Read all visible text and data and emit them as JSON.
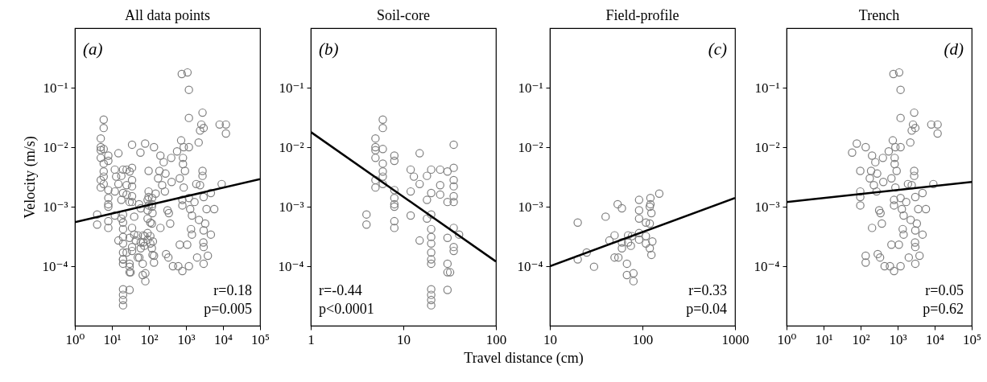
{
  "chart_data": [
    {
      "type": "scatter",
      "title": "All data points",
      "ylabel": "Velocity (m/s)",
      "log": "xy",
      "xlim": [
        1,
        100000
      ],
      "xticks": [
        {
          "value": 1,
          "label": "10⁰"
        },
        {
          "value": 10,
          "label": "10¹"
        },
        {
          "value": 100,
          "label": "10²"
        },
        {
          "value": 1000,
          "label": "10³"
        },
        {
          "value": 10000,
          "label": "10⁴"
        },
        {
          "value": 100000,
          "label": "10⁵"
        }
      ],
      "ylim": [
        1e-05,
        1
      ],
      "yticks": [
        {
          "value": 0.0001,
          "label": "10⁻⁴"
        },
        {
          "value": 0.001,
          "label": "10⁻³"
        },
        {
          "value": 0.01,
          "label": "10⁻²"
        },
        {
          "value": 0.1,
          "label": "10⁻¹"
        }
      ],
      "annotations": [
        "(a)",
        "r=0.18",
        "p=0.005"
      ],
      "series": [
        {
          "type": "scatter",
          "marker": "circle",
          "color": "#808080",
          "x": [
            4,
            4,
            5,
            5,
            5,
            5,
            5,
            5,
            6,
            6,
            6,
            6,
            6,
            6,
            6,
            8,
            8,
            8,
            8,
            8,
            8,
            8,
            8,
            12,
            12,
            12,
            13,
            15,
            15,
            15,
            18,
            18,
            18,
            20,
            20,
            20,
            20,
            20,
            20,
            20,
            20,
            20,
            20,
            20,
            20,
            20,
            25,
            25,
            25,
            30,
            30,
            30,
            30,
            30,
            30,
            32,
            35,
            35,
            35,
            35,
            35,
            35,
            35,
            35,
            35,
            40,
            20,
            20,
            25,
            30,
            40,
            44,
            50,
            50,
            54,
            60,
            55,
            60,
            60,
            68,
            70,
            70,
            68,
            80,
            80,
            75,
            77,
            92,
            92,
            92,
            92,
            92,
            109,
            109,
            109,
            122,
            122,
            120,
            125,
            120,
            120,
            125,
            128,
            152,
            59,
            79,
            98,
            98,
            98,
            98,
            137,
            137,
            137,
            204,
            177,
            192,
            228,
            250,
            270,
            290,
            335,
            204,
            317,
            345,
            375,
            280,
            400,
            410,
            445,
            575,
            620,
            680,
            680,
            740,
            770,
            830,
            830,
            870,
            800,
            800,
            800,
            870,
            940,
            1100,
            1200,
            1200,
            1200,
            1080,
            1200,
            1200,
            1300,
            1370,
            1450,
            1450,
            1700,
            1900,
            2000,
            2200,
            2250,
            2400,
            2400,
            2600,
            2800,
            2800,
            2800,
            2950,
            3000,
            3000,
            3000,
            3000,
            3000,
            3300,
            3600,
            3900,
            4700,
            5800,
            4700,
            8100,
            9200,
            12000,
            12000
          ],
          "values": [
            0.00074,
            0.0005,
            0.014,
            0.01,
            0.0089,
            0.0066,
            0.0028,
            0.0021,
            0.029,
            0.021,
            0.0093,
            0.0053,
            0.0039,
            0.0032,
            0.0024,
            0.0072,
            0.0059,
            0.0019,
            0.0014,
            0.0011,
            0.001,
            0.00057,
            0.00044,
            0.0042,
            0.0018,
            0.00071,
            0.0032,
            0.0079,
            0.0024,
            0.00027,
            0.0033,
            0.0013,
            0.00063,
            0.0042,
            0.0017,
            0.00074,
            0.00042,
            0.00031,
            0.00024,
            0.00017,
            0.00013,
            0.00011,
            4.1e-05,
            3.3e-05,
            2.7e-05,
            2.2e-05,
            0.0042,
            0.0023,
            0.0016,
            0.0039,
            0.0012,
            0.0003,
            0.00011,
            7.9e-05,
            4e-05,
            7.9e-05,
            0.011,
            0.0045,
            0.0028,
            0.0022,
            0.0015,
            0.0012,
            0.00044,
            0.00021,
            0.00018,
            0.00034,
            0.00054,
            0.00013,
            0.00017,
            9.8e-05,
            0.00068,
            0.00027,
            0.00033,
            0.00014,
            0.0011,
            0.00094,
            0.00014,
            0.00025,
            0.0002,
            0.00011,
            0.00033,
            0.00025,
            7.1e-05,
            7.6e-05,
            5.6e-05,
            0.00022,
            0.00032,
            0.0013,
            0.00087,
            0.00063,
            0.00036,
            0.00028,
            0.00054,
            0.00032,
            0.00024,
            0.0014,
            0.0011,
            0.001,
            0.00078,
            0.00052,
            0.0002,
            0.000155,
            0.00026,
            0.00166,
            0.0081,
            0.0115,
            0.004,
            0.0018,
            0.00145,
            0.00105,
            0.01,
            0.00015,
            0.000115,
            0.0072,
            0.003,
            0.004,
            0.0023,
            0.0056,
            0.0018,
            0.00016,
            0.00014,
            0.00044,
            0.00087,
            0.00078,
            0.00052,
            0.0036,
            0.0066,
            0.0026,
            0.0001,
            0.0085,
            0.0001,
            0.00023,
            0.003,
            0.013,
            0.17,
            0.0066,
            0.0052,
            0.01,
            0.0013,
            0.00105,
            8.3e-05,
            0.0021,
            0.004,
            0.18,
            0.092,
            0.031,
            0.01,
            0.00023,
            0.0001,
            0.0014,
            0.00091,
            0.00042,
            0.00034,
            0.00071,
            0.0012,
            0.0024,
            0.00014,
            0.012,
            0.0006,
            0.019,
            0.0023,
            0.024,
            0.038,
            0.004,
            0.0033,
            0.00025,
            0.00021,
            0.00011,
            0.021,
            0.00145,
            0.0004,
            0.00052,
            0.00091,
            0.00015,
            0.0017,
            0.00091,
            0.00034,
            0.024,
            0.0024,
            0.024,
            0.017
          ]
        },
        {
          "type": "line",
          "marker": "none",
          "color": "#000000",
          "x": [
            1,
            100000
          ],
          "values": [
            0.00055,
            0.0029
          ]
        }
      ]
    },
    {
      "type": "scatter",
      "title": "Soil-core",
      "xlabel": "Travel distance (cm)",
      "log": "xy",
      "xlim": [
        1,
        100
      ],
      "xticks": [
        1,
        10,
        100
      ],
      "ylim": [
        1e-05,
        1
      ],
      "yticks": [
        {
          "value": 0.0001,
          "label": "10⁻⁴"
        },
        {
          "value": 0.001,
          "label": "10⁻³"
        },
        {
          "value": 0.01,
          "label": "10⁻²"
        },
        {
          "value": 0.1,
          "label": "10⁻¹"
        }
      ],
      "annotations": [
        "(b)",
        "r=-0.44",
        "p<0.0001"
      ],
      "series": [
        {
          "type": "scatter",
          "marker": "circle",
          "color": "#808080",
          "x": [
            4,
            4,
            5,
            5,
            5,
            5,
            5,
            5,
            6,
            6,
            6,
            6,
            6,
            6,
            6,
            8,
            8,
            8,
            8,
            8,
            8,
            8,
            8,
            12,
            12,
            12,
            13,
            15,
            15,
            15,
            18,
            18,
            18,
            20,
            20,
            20,
            20,
            20,
            20,
            20,
            20,
            20,
            20,
            20,
            20,
            20,
            25,
            25,
            25,
            30,
            30,
            30,
            30,
            30,
            30,
            32,
            35,
            35,
            35,
            35,
            35,
            35,
            35,
            35,
            35,
            40
          ],
          "values": [
            0.00074,
            0.0005,
            0.014,
            0.01,
            0.0089,
            0.0066,
            0.0028,
            0.0021,
            0.029,
            0.021,
            0.0093,
            0.0053,
            0.0039,
            0.0032,
            0.0024,
            0.0072,
            0.0059,
            0.0019,
            0.0014,
            0.0011,
            0.001,
            0.00057,
            0.00044,
            0.0042,
            0.0018,
            0.00071,
            0.0032,
            0.0079,
            0.0024,
            0.00027,
            0.0033,
            0.0013,
            0.00063,
            0.0042,
            0.0017,
            0.00074,
            0.00042,
            0.00031,
            0.00024,
            0.00017,
            0.00013,
            0.00011,
            4.1e-05,
            3.3e-05,
            2.7e-05,
            2.2e-05,
            0.0042,
            0.0023,
            0.0016,
            0.0039,
            0.0012,
            0.0003,
            0.00011,
            7.9e-05,
            4e-05,
            7.9e-05,
            0.011,
            0.0045,
            0.0028,
            0.0022,
            0.0015,
            0.0012,
            0.00044,
            0.00021,
            0.00018,
            0.00034
          ]
        },
        {
          "type": "line",
          "marker": "none",
          "color": "#000000",
          "x": [
            1,
            100
          ],
          "values": [
            0.018,
            0.00012
          ]
        }
      ]
    },
    {
      "type": "scatter",
      "title": "Field-profile",
      "log": "xy",
      "xlim": [
        10,
        1000
      ],
      "xticks": [
        10,
        100,
        {
          "value": 1000,
          "label": "1000"
        }
      ],
      "ylim": [
        1e-05,
        1
      ],
      "yticks": [
        {
          "value": 0.0001,
          "label": "10⁻⁴"
        },
        {
          "value": 0.001,
          "label": "10⁻³"
        },
        {
          "value": 0.01,
          "label": "10⁻²"
        },
        {
          "value": 0.1,
          "label": "10⁻¹"
        }
      ],
      "annotations": [
        "(c)",
        "r=0.33",
        "p=0.04"
      ],
      "series": [
        {
          "type": "scatter",
          "marker": "circle",
          "color": "#808080",
          "x": [
            20,
            20,
            25,
            30,
            40,
            44,
            50,
            50,
            54,
            60,
            55,
            60,
            60,
            68,
            70,
            70,
            68,
            80,
            80,
            75,
            77,
            92,
            92,
            92,
            92,
            92,
            109,
            109,
            109,
            122,
            122,
            120,
            125,
            120,
            120,
            125,
            128,
            152
          ],
          "values": [
            0.00054,
            0.00013,
            0.00017,
            9.8e-05,
            0.00068,
            0.00027,
            0.00033,
            0.00014,
            0.0011,
            0.00094,
            0.00014,
            0.00025,
            0.0002,
            0.00011,
            0.00033,
            0.00025,
            7.1e-05,
            7.6e-05,
            5.6e-05,
            0.00022,
            0.00032,
            0.0013,
            0.00087,
            0.00063,
            0.00036,
            0.00028,
            0.00054,
            0.00032,
            0.00024,
            0.0014,
            0.0011,
            0.001,
            0.00078,
            0.00052,
            0.0002,
            0.000155,
            0.00026,
            0.00166
          ]
        },
        {
          "type": "line",
          "marker": "none",
          "color": "#000000",
          "x": [
            10,
            1000
          ],
          "values": [
            0.0001,
            0.0014
          ]
        }
      ]
    },
    {
      "type": "scatter",
      "title": "Trench",
      "log": "xy",
      "xlim": [
        1,
        100000
      ],
      "xticks": [
        {
          "value": 1,
          "label": "10⁰"
        },
        {
          "value": 10,
          "label": "10¹"
        },
        {
          "value": 100,
          "label": "10²"
        },
        {
          "value": 1000,
          "label": "10³"
        },
        {
          "value": 10000,
          "label": "10⁴"
        },
        {
          "value": 100000,
          "label": "10⁵"
        }
      ],
      "ylim": [
        1e-05,
        1
      ],
      "yticks": [
        {
          "value": 0.0001,
          "label": "10⁻⁴"
        },
        {
          "value": 0.001,
          "label": "10⁻³"
        },
        {
          "value": 0.01,
          "label": "10⁻²"
        },
        {
          "value": 0.1,
          "label": "10⁻¹"
        }
      ],
      "annotations": [
        "(d)",
        "r=0.05",
        "p=0.62"
      ],
      "series": [
        {
          "type": "scatter",
          "marker": "circle",
          "color": "#808080",
          "x": [
            59,
            79,
            98,
            98,
            98,
            98,
            137,
            137,
            137,
            204,
            177,
            192,
            228,
            250,
            270,
            290,
            335,
            204,
            317,
            345,
            375,
            280,
            400,
            410,
            445,
            575,
            620,
            680,
            680,
            740,
            770,
            830,
            830,
            870,
            800,
            800,
            800,
            870,
            940,
            1100,
            1200,
            1200,
            1200,
            1080,
            1200,
            1200,
            1300,
            1370,
            1450,
            1450,
            1700,
            1900,
            2000,
            2200,
            2250,
            2400,
            2400,
            2600,
            2800,
            2800,
            2800,
            2950,
            3000,
            3000,
            3000,
            3000,
            3000,
            3300,
            3600,
            3900,
            4700,
            5800,
            4700,
            8100,
            9200,
            12000,
            12000
          ],
          "values": [
            0.0081,
            0.0115,
            0.004,
            0.0018,
            0.00145,
            0.00105,
            0.01,
            0.00015,
            0.000115,
            0.0072,
            0.003,
            0.004,
            0.0023,
            0.0056,
            0.0018,
            0.00016,
            0.00014,
            0.00044,
            0.00087,
            0.00078,
            0.00052,
            0.0036,
            0.0066,
            0.0026,
            0.0001,
            0.0085,
            0.0001,
            0.00023,
            0.003,
            0.013,
            0.17,
            0.0066,
            0.0052,
            0.01,
            0.0013,
            0.00105,
            8.3e-05,
            0.0021,
            0.004,
            0.18,
            0.092,
            0.031,
            0.01,
            0.00023,
            0.0001,
            0.0014,
            0.00091,
            0.00042,
            0.00034,
            0.00071,
            0.0012,
            0.0024,
            0.00014,
            0.012,
            0.0006,
            0.019,
            0.0023,
            0.024,
            0.038,
            0.004,
            0.0033,
            0.00025,
            0.00021,
            0.00011,
            0.021,
            0.00145,
            0.0004,
            0.00052,
            0.00091,
            0.00015,
            0.0017,
            0.00091,
            0.00034,
            0.024,
            0.0024,
            0.024,
            0.017
          ]
        },
        {
          "type": "line",
          "marker": "none",
          "color": "#000000",
          "x": [
            1,
            100000
          ],
          "values": [
            0.0012,
            0.0026
          ]
        }
      ]
    }
  ]
}
